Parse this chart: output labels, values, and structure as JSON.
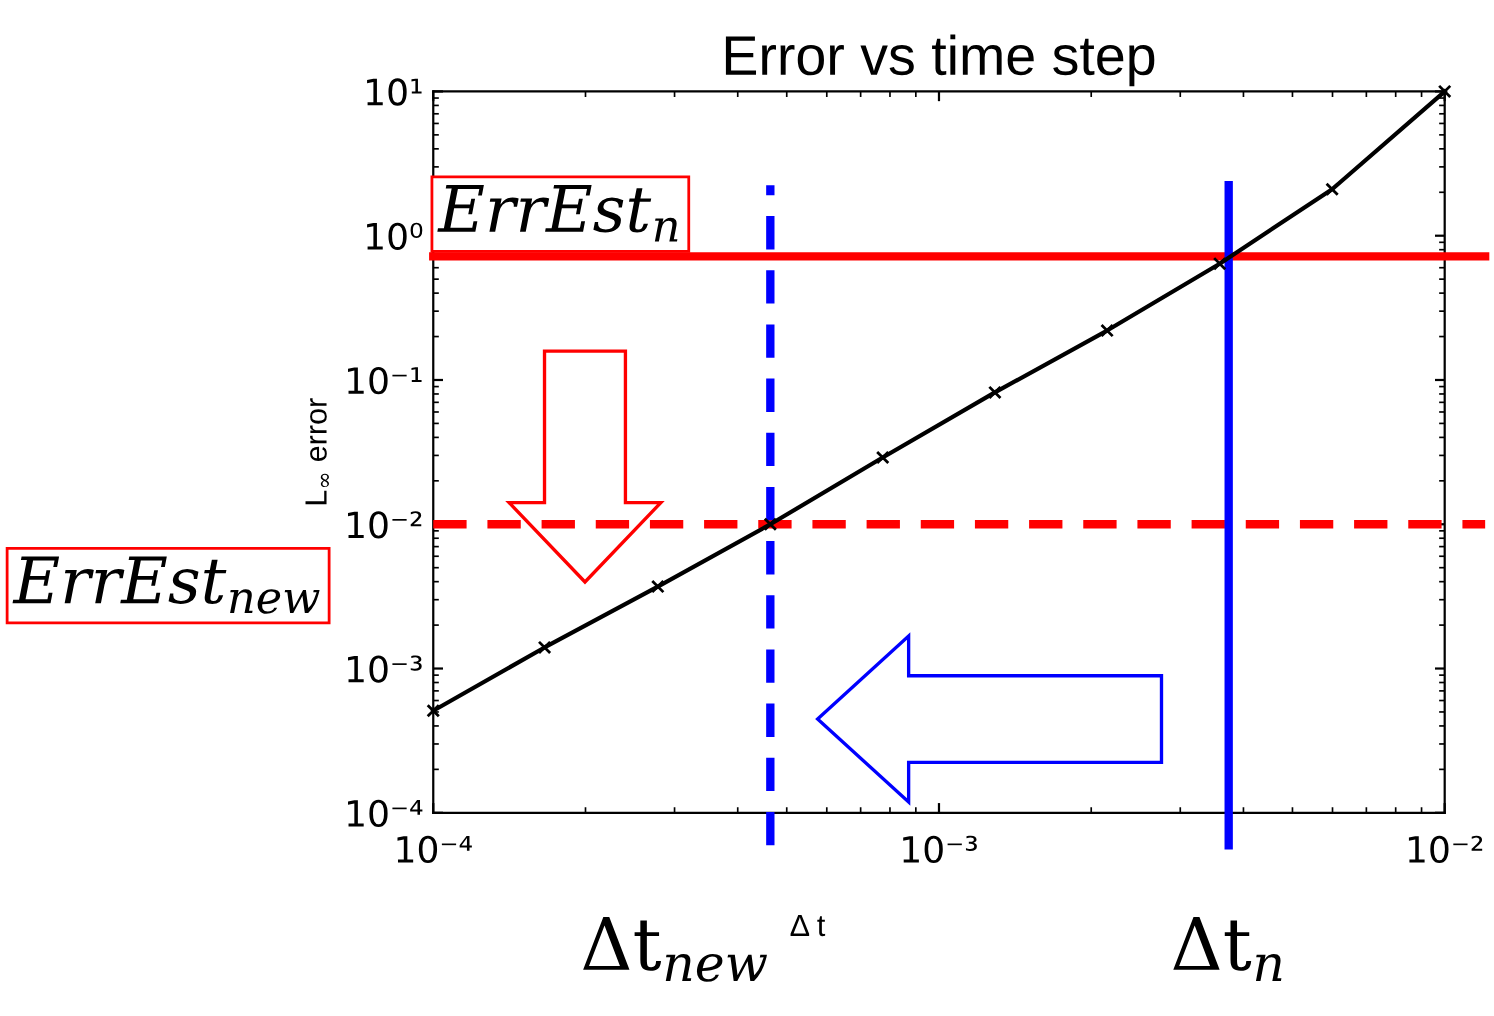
{
  "chart_data": {
    "type": "line",
    "title": "Error vs time step",
    "xlabel": "Δ t",
    "ylabel": "L$_{∞}$ error",
    "x": [
      0.0001,
      0.000166,
      0.000278,
      0.000464,
      0.000774,
      0.00129,
      0.00215,
      0.00359,
      0.00599,
      0.01
    ],
    "series": [
      {
        "color": "#000000",
        "values": [
          0.00051,
          0.0014,
          0.0037,
          0.01,
          0.029,
          0.082,
          0.22,
          0.64,
          2.1,
          10
        ]
      }
    ],
    "marker": "cross",
    "line_style": "solid",
    "log": "xy",
    "grid": false,
    "legend": false,
    "xlim": [
      0.0001,
      0.01
    ],
    "ylim": [
      0.0001,
      10
    ],
    "xticks": [
      {
        "value": 0.0001,
        "label": "10⁻⁴"
      },
      {
        "value": 0.001,
        "label": "10⁻³"
      },
      {
        "value": 0.01,
        "label": "10⁻²"
      }
    ],
    "yticks": [
      {
        "value": 0.0001,
        "label": "10⁻⁴"
      },
      {
        "value": 0.001,
        "label": "10⁻³"
      },
      {
        "value": 0.01,
        "label": "10⁻²"
      },
      {
        "value": 0.1,
        "label": "10⁻¹"
      },
      {
        "value": 1,
        "label": "10⁰"
      },
      {
        "value": 10,
        "label": "10¹"
      }
    ],
    "ref_lines": [
      {
        "axis": "y",
        "value": 0.72,
        "label": "ErrEst$_{n}$",
        "color": "#ff0000",
        "line_style": "solid"
      },
      {
        "axis": "y",
        "value": 0.01,
        "label": "ErrEst$_{new}$",
        "color": "#ff0000",
        "line_style": "dashed"
      },
      {
        "axis": "x",
        "value": 0.00374,
        "label": "Δt$_{n}$",
        "color": "#0000ff",
        "line_style": "solid"
      },
      {
        "axis": "x",
        "value": 0.000464,
        "label": "Δt$_{new}$",
        "color": "#0000ff",
        "line_style": "dashed"
      }
    ]
  }
}
